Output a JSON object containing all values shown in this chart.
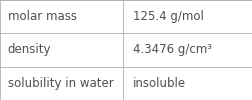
{
  "rows": [
    {
      "label": "molar mass",
      "value": "125.4 g/mol"
    },
    {
      "label": "density",
      "value": "4.3476 g/cm³"
    },
    {
      "label": "solubility in water",
      "value": "insoluble"
    }
  ],
  "bg_color": "#ffffff",
  "border_color": "#b0b0b0",
  "text_color": "#505050",
  "font_size": 8.5,
  "col_split": 0.485
}
